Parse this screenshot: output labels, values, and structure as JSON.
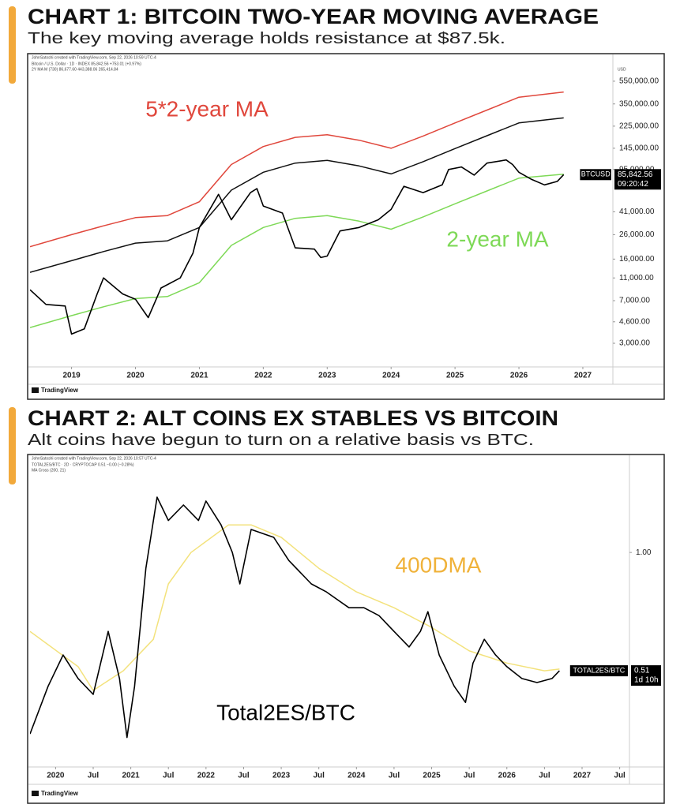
{
  "chart_data": [
    {
      "type": "line",
      "title": "CHART 1: BITCOIN TWO-YEAR MOVING AVERAGE",
      "subtitle": "The key moving average holds resistance at $87.5k.",
      "source": "JohnSatoshi created with TradingView.com, Sep 22, 2026 10:59 UTC-4",
      "info": [
        "Bitcoin / U.S. Dollar · 1D · INDEX  85,842.56  +753.01 (+0.97%)",
        "2Y MA M (730)  86,677.60  443,388.06  265,414.84"
      ],
      "y_unit": "USD",
      "brand": "TradingView",
      "log_y": true,
      "grid": false,
      "xlim": [
        2018.35,
        2027.47
      ],
      "xticks": [
        2019,
        2020,
        2021,
        2022,
        2023,
        2024,
        2025,
        2026,
        2027
      ],
      "ylim": [
        1875,
        695000
      ],
      "yticks": [
        {
          "value": 3000,
          "label": "3,000.00"
        },
        {
          "value": 4600,
          "label": "4,600.00"
        },
        {
          "value": 7000,
          "label": "7,000.00"
        },
        {
          "value": 11000,
          "label": "11,000.00"
        },
        {
          "value": 16000,
          "label": "16,000.00"
        },
        {
          "value": 26000,
          "label": "26,000.00"
        },
        {
          "value": 41000,
          "label": "41,000.00"
        },
        {
          "value": 95000,
          "label": "95,000.00"
        },
        {
          "value": 145000,
          "label": "145,000.00"
        },
        {
          "value": 225000,
          "label": "225,000.00"
        },
        {
          "value": 350000,
          "label": "350,000.00"
        },
        {
          "value": 550000,
          "label": "550,000.00"
        }
      ],
      "series": [
        {
          "name": "5*2-year MA",
          "color": "#e0473c",
          "x": [
            2018.35,
            2019,
            2019.5,
            2020,
            2020.5,
            2021,
            2021.5,
            2022,
            2022.5,
            2023,
            2023.5,
            2024,
            2024.5,
            2025,
            2025.5,
            2026,
            2026.7
          ],
          "values": [
            20500,
            26000,
            31000,
            36500,
            38000,
            50000,
            105000,
            150000,
            180000,
            190000,
            170000,
            145000,
            185000,
            240000,
            310000,
            400000,
            443388.06
          ]
        },
        {
          "color": "#111111",
          "x": [
            2018.35,
            2019,
            2019.5,
            2020,
            2020.5,
            2021,
            2021.5,
            2022,
            2022.5,
            2023,
            2023.5,
            2024,
            2024.5,
            2025,
            2025.5,
            2026,
            2026.7
          ],
          "values": [
            12300,
            15500,
            18600,
            22000,
            23000,
            30000,
            63000,
            90000,
            108000,
            114000,
            102000,
            87000,
            111000,
            144000,
            186000,
            240000,
            265414.84
          ]
        },
        {
          "name": "2-year MA",
          "color": "#7ed957",
          "x": [
            2018.35,
            2019,
            2019.5,
            2020,
            2020.5,
            2021,
            2021.5,
            2022,
            2022.5,
            2023,
            2023.5,
            2024,
            2024.5,
            2025,
            2025.5,
            2026,
            2026.7
          ],
          "values": [
            4100,
            5200,
            6200,
            7300,
            7600,
            10000,
            21000,
            30000,
            36000,
            38000,
            34000,
            29000,
            37000,
            48000,
            62000,
            80000,
            86677.6
          ]
        },
        {
          "color": "#000000",
          "x": [
            2018.35,
            2018.6,
            2018.9,
            2019.0,
            2019.2,
            2019.4,
            2019.5,
            2019.8,
            2020.0,
            2020.2,
            2020.4,
            2020.7,
            2020.9,
            2021.0,
            2021.3,
            2021.5,
            2021.8,
            2021.9,
            2022.0,
            2022.3,
            2022.5,
            2022.8,
            2022.9,
            2023.0,
            2023.2,
            2023.5,
            2023.8,
            2024.0,
            2024.2,
            2024.5,
            2024.8,
            2024.9,
            2025.1,
            2025.3,
            2025.5,
            2025.8,
            2025.9,
            2026.0,
            2026.2,
            2026.4,
            2026.6,
            2026.7
          ],
          "values": [
            8700,
            6500,
            6300,
            3600,
            4000,
            8000,
            11000,
            8000,
            7200,
            5000,
            9000,
            11000,
            18000,
            30000,
            58000,
            35000,
            60000,
            65000,
            46000,
            40000,
            20000,
            19500,
            16500,
            17000,
            28000,
            30000,
            35000,
            43000,
            68000,
            60000,
            70000,
            95000,
            100000,
            85000,
            108000,
            115000,
            105000,
            90000,
            78000,
            70000,
            75000,
            85842.56
          ]
        }
      ],
      "price_tag": {
        "symbol": "BTCUSD",
        "label": "85,842.56",
        "countdown": "09:20:42"
      }
    },
    {
      "type": "line",
      "title": "CHART 2: ALT COINS EX STABLES VS BITCOIN",
      "subtitle": "Alt coins have begun to turn on a relative basis vs BTC.",
      "source": "JohnSatoshi created with TradingView.com, Sep 22, 2026 10:57 UTC-4",
      "info": [
        "TOTAL2ES/BTC · 2D · CRYPTOCAP  0.51  −0.00 (−0.28%)",
        "MA Cross (200, 21)"
      ],
      "brand": "TradingView",
      "log_y": true,
      "grid": false,
      "xlim": [
        2019.66,
        2027.63
      ],
      "xticks": [
        2020,
        {
          "value": 2020.5,
          "label": "Jul"
        },
        2021,
        {
          "value": 2021.5,
          "label": "Jul"
        },
        2022,
        {
          "value": 2022.5,
          "label": "Jul"
        },
        2023,
        {
          "value": 2023.5,
          "label": "Jul"
        },
        2024,
        {
          "value": 2024.5,
          "label": "Jul"
        },
        2025,
        {
          "value": 2025.5,
          "label": "Jul"
        },
        2026,
        {
          "value": 2026.5,
          "label": "Jul"
        },
        2027,
        {
          "value": 2027.5,
          "label": "Jul"
        }
      ],
      "ylim": [
        0.295,
        1.64
      ],
      "yticks": [
        {
          "value": 1,
          "label": "1.00"
        }
      ],
      "series": [
        {
          "name": "400DMA",
          "color": "#f3e27c",
          "label_color": "#f0b23a",
          "x": [
            2019.66,
            2020.3,
            2020.5,
            2020.9,
            2021.3,
            2021.5,
            2021.8,
            2022.3,
            2022.6,
            2023.0,
            2023.5,
            2024.0,
            2024.5,
            2025.0,
            2025.5,
            2026.0,
            2026.5,
            2026.7
          ],
          "values": [
            0.638,
            0.522,
            0.456,
            0.51,
            0.61,
            0.836,
            1.0,
            1.17,
            1.17,
            1.09,
            0.914,
            0.799,
            0.73,
            0.653,
            0.571,
            0.533,
            0.51,
            0.515
          ]
        },
        {
          "name": "Total2ES/BTC",
          "color": "#000000",
          "x": [
            2019.66,
            2019.9,
            2020.1,
            2020.3,
            2020.5,
            2020.7,
            2020.85,
            2020.95,
            2021.05,
            2021.2,
            2021.35,
            2021.5,
            2021.7,
            2021.9,
            2022.0,
            2022.2,
            2022.35,
            2022.45,
            2022.6,
            2022.9,
            2023.1,
            2023.4,
            2023.6,
            2023.9,
            2024.1,
            2024.3,
            2024.5,
            2024.7,
            2024.85,
            2024.95,
            2025.1,
            2025.3,
            2025.45,
            2025.55,
            2025.7,
            2025.85,
            2026.0,
            2026.2,
            2026.4,
            2026.6,
            2026.7
          ],
          "values": [
            0.356,
            0.467,
            0.558,
            0.488,
            0.446,
            0.638,
            0.488,
            0.349,
            0.467,
            0.914,
            1.37,
            1.2,
            1.31,
            1.2,
            1.34,
            1.17,
            1.0,
            0.836,
            1.14,
            1.09,
            0.956,
            0.836,
            0.799,
            0.73,
            0.73,
            0.698,
            0.638,
            0.584,
            0.638,
            0.714,
            0.558,
            0.467,
            0.426,
            0.533,
            0.61,
            0.558,
            0.522,
            0.488,
            0.477,
            0.488,
            0.51
          ]
        }
      ],
      "price_tag": {
        "symbol": "TOTAL2ES/BTC",
        "label": "0.51",
        "countdown": "1d 10h"
      }
    }
  ]
}
